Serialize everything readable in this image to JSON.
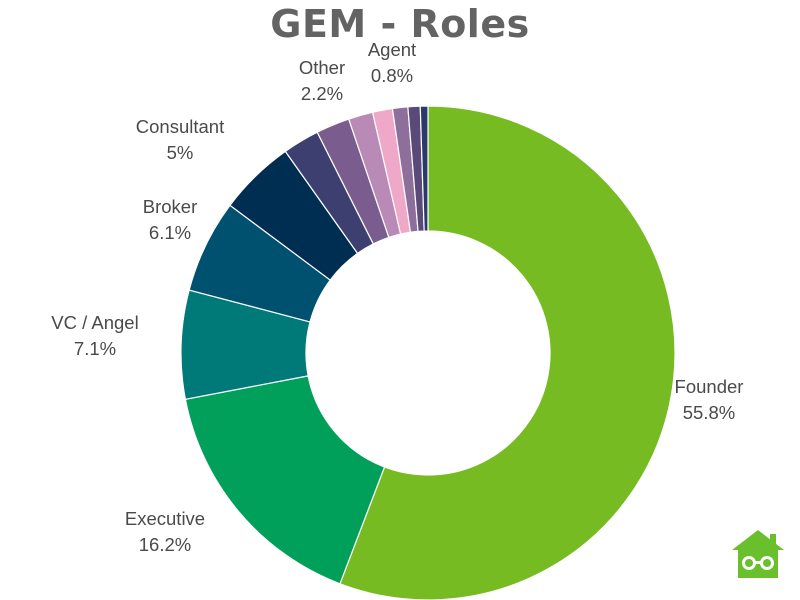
{
  "colors": {
    "title": "#636363",
    "label": "#4a4a4a",
    "logo": "#6abf2c"
  },
  "logo_icon": "house-glasses-icon",
  "chart_data": {
    "type": "pie",
    "style": "donut",
    "title": "GEM - Roles",
    "legend": "none",
    "start_angle_deg": 0,
    "direction": "clockwise",
    "slices": [
      {
        "label": "Founder",
        "value": 55.8,
        "value_label": "55.8%",
        "color": "#77bb22",
        "show_label": true
      },
      {
        "label": "Executive",
        "value": 16.2,
        "value_label": "16.2%",
        "color": "#00a05a",
        "show_label": true
      },
      {
        "label": "VC / Angel",
        "value": 7.1,
        "value_label": "7.1%",
        "color": "#007a78",
        "show_label": true
      },
      {
        "label": "Broker",
        "value": 6.1,
        "value_label": "6.1%",
        "color": "#00506f",
        "show_label": true
      },
      {
        "label": "Consultant",
        "value": 5,
        "value_label": "5%",
        "color": "#002e52",
        "show_label": true
      },
      {
        "label": "",
        "value": 2.4,
        "value_label": "",
        "color": "#3c3f70",
        "show_label": false
      },
      {
        "label": "Other",
        "value": 2.2,
        "value_label": "2.2%",
        "color": "#7a5d8e",
        "show_label": true
      },
      {
        "label": "",
        "value": 1.6,
        "value_label": "",
        "color": "#b98ab5",
        "show_label": false
      },
      {
        "label": "",
        "value": 1.3,
        "value_label": "",
        "color": "#f0a8c8",
        "show_label": false
      },
      {
        "label": "",
        "value": 1.0,
        "value_label": "",
        "color": "#8e6f9b",
        "show_label": false
      },
      {
        "label": "Agent",
        "value": 0.8,
        "value_label": "0.8%",
        "color": "#5a4a7a",
        "show_label": true
      },
      {
        "label": "",
        "value": 0.5,
        "value_label": "",
        "color": "#2b3a6a",
        "show_label": false
      }
    ]
  }
}
